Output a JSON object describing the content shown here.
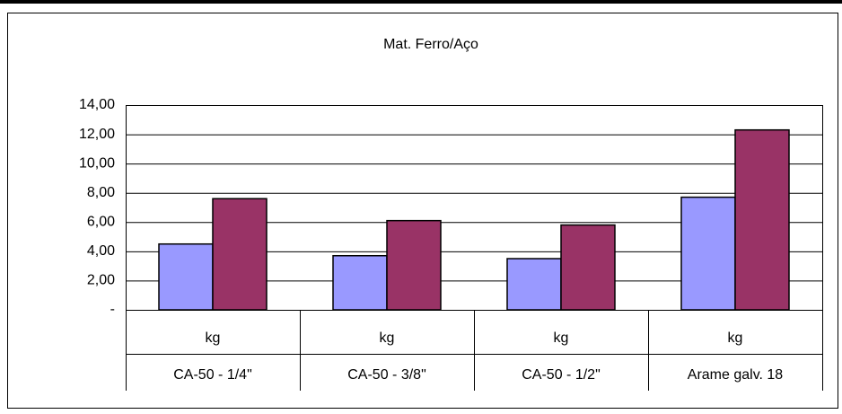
{
  "chart_data": {
    "type": "bar",
    "title": "Mat. Ferro/Aço",
    "categories": [
      "CA-50 - 1/4\"",
      "CA-50 - 3/8\"",
      "CA-50 - 1/2\"",
      "Arame galv. 18"
    ],
    "category_units": [
      "kg",
      "kg",
      "kg",
      "kg"
    ],
    "series": [
      {
        "color": "#9999ff",
        "values": [
          4.5,
          3.7,
          3.5,
          7.7
        ]
      },
      {
        "color": "#993366",
        "values": [
          7.6,
          6.1,
          5.8,
          12.3
        ]
      }
    ],
    "ylim": [
      0,
      14
    ],
    "yticks": [
      {
        "value": 0,
        "label": "-"
      },
      {
        "value": 2,
        "label": "2,00"
      },
      {
        "value": 4,
        "label": "4,00"
      },
      {
        "value": 6,
        "label": "6,00"
      },
      {
        "value": 8,
        "label": "8,00"
      },
      {
        "value": 10,
        "label": "10,00"
      },
      {
        "value": 12,
        "label": "12,00"
      },
      {
        "value": 14,
        "label": "14,00"
      }
    ],
    "grid": true
  }
}
